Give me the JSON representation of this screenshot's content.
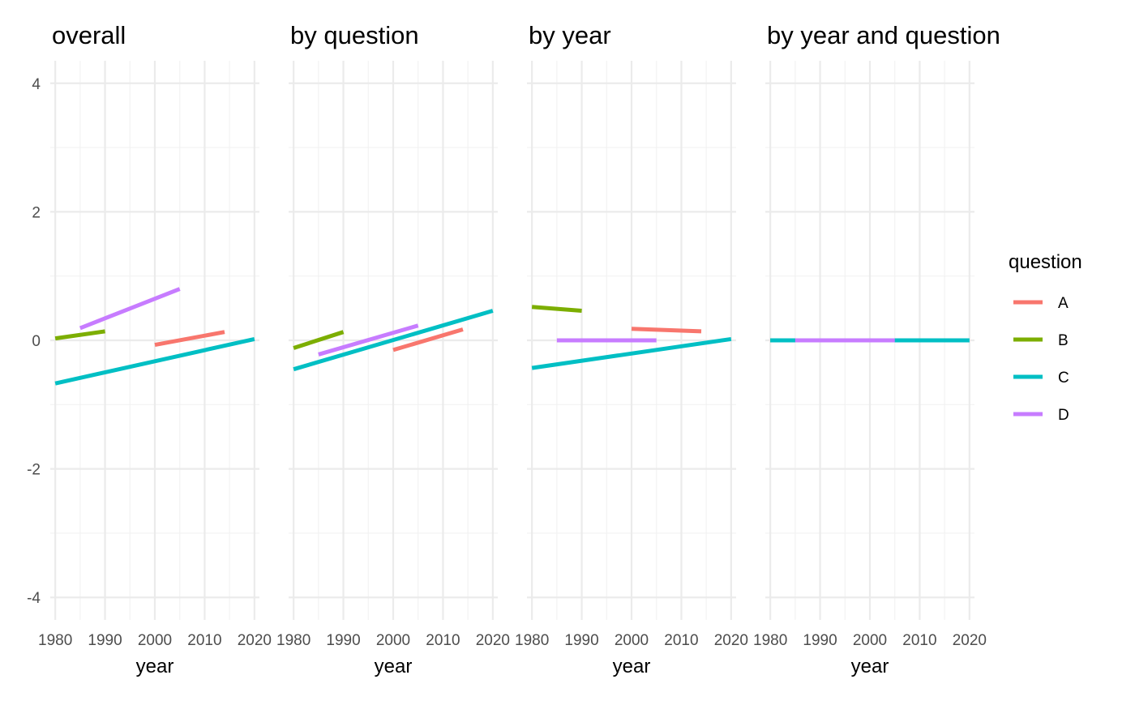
{
  "chart_data": {
    "type": "line",
    "xlabel": "year",
    "ylabel": "",
    "xlim": [
      1979,
      2021
    ],
    "ylim": [
      -4.35,
      4.35
    ],
    "x_ticks": [
      1980,
      1990,
      2000,
      2010,
      2020
    ],
    "y_ticks": [
      -4,
      -2,
      0,
      2,
      4
    ],
    "y_tick_labels": [
      "-4",
      "-2",
      "0",
      "2",
      "4"
    ],
    "grid": true,
    "legend": {
      "title": "question",
      "placement": "right",
      "entries": [
        {
          "name": "A",
          "color": "#F8766D"
        },
        {
          "name": "B",
          "color": "#7CAE00"
        },
        {
          "name": "C",
          "color": "#00BFC4"
        },
        {
          "name": "D",
          "color": "#C77CFF"
        }
      ]
    },
    "panels": [
      {
        "title": "overall",
        "series": [
          {
            "name": "A",
            "x": [
              2000,
              2014
            ],
            "y": [
              -0.07,
              0.13
            ]
          },
          {
            "name": "B",
            "x": [
              1980,
              1990
            ],
            "y": [
              0.03,
              0.14
            ]
          },
          {
            "name": "C",
            "x": [
              1980,
              2020
            ],
            "y": [
              -0.67,
              0.02
            ]
          },
          {
            "name": "D",
            "x": [
              1985,
              2005
            ],
            "y": [
              0.19,
              0.8
            ]
          }
        ]
      },
      {
        "title": "by question",
        "series": [
          {
            "name": "A",
            "x": [
              2000,
              2014
            ],
            "y": [
              -0.15,
              0.17
            ]
          },
          {
            "name": "B",
            "x": [
              1980,
              1990
            ],
            "y": [
              -0.12,
              0.13
            ]
          },
          {
            "name": "C",
            "x": [
              1980,
              2020
            ],
            "y": [
              -0.45,
              0.46
            ]
          },
          {
            "name": "D",
            "x": [
              1985,
              2005
            ],
            "y": [
              -0.22,
              0.23
            ]
          }
        ]
      },
      {
        "title": "by year",
        "series": [
          {
            "name": "A",
            "x": [
              2000,
              2014
            ],
            "y": [
              0.18,
              0.14
            ]
          },
          {
            "name": "B",
            "x": [
              1980,
              1990
            ],
            "y": [
              0.52,
              0.46
            ]
          },
          {
            "name": "C",
            "x": [
              1980,
              2020
            ],
            "y": [
              -0.43,
              0.02
            ]
          },
          {
            "name": "D",
            "x": [
              1985,
              2005
            ],
            "y": [
              0.0,
              0.0
            ]
          }
        ]
      },
      {
        "title": "by year and question",
        "series": [
          {
            "name": "A",
            "x": [
              2000,
              2014
            ],
            "y": [
              0.0,
              0.0
            ]
          },
          {
            "name": "B",
            "x": [
              1980,
              1990
            ],
            "y": [
              0.0,
              0.0
            ]
          },
          {
            "name": "C",
            "x": [
              1980,
              2020
            ],
            "y": [
              0.0,
              0.0
            ]
          },
          {
            "name": "D",
            "x": [
              1985,
              2005
            ],
            "y": [
              0.0,
              0.0
            ]
          }
        ]
      }
    ]
  }
}
